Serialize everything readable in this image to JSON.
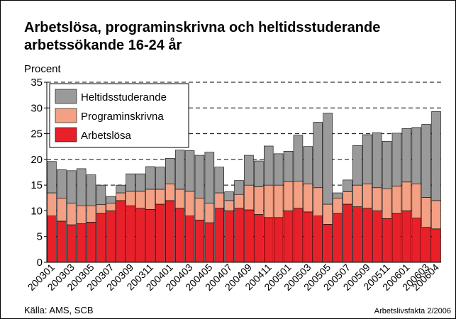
{
  "chart_data": {
    "type": "stacked_bar",
    "title": "Arbetslösa, programinskrivna och heltidsstuderande",
    "subtitle": "arbetssökande 16-24 år",
    "ylabel": "Procent",
    "source": "Källa: AMS, SCB",
    "credit": "Arbetslivsfakta 2/2006",
    "categories": [
      "200301",
      null,
      "200303",
      null,
      "200305",
      null,
      "200307",
      null,
      "200309",
      null,
      "200311",
      null,
      "200401",
      null,
      "200403",
      null,
      "200405",
      null,
      "200407",
      null,
      "200409",
      null,
      "200411",
      null,
      "200501",
      null,
      "200503",
      null,
      "200505",
      null,
      "200507",
      null,
      "200509",
      null,
      "200511",
      null,
      "200601",
      null,
      "200603",
      "200604"
    ],
    "series": [
      {
        "name": "Arbetslösa",
        "color": "#e8202a",
        "values": [
          9,
          8,
          7.3,
          7.5,
          7.8,
          9.5,
          10,
          12,
          11,
          10.5,
          10.3,
          11.3,
          12,
          10.5,
          9,
          8.2,
          7.7,
          10.5,
          10,
          10.5,
          10.2,
          9.3,
          8.7,
          8.7,
          10,
          10.5,
          9.8,
          9,
          7.4,
          9.5,
          11.3,
          10.8,
          10.5,
          10,
          8.5,
          9.5,
          10,
          8.6,
          6.8,
          6.5
        ]
      },
      {
        "name": "Programinskrivna",
        "color": "#f4a084",
        "values": [
          4.5,
          4.5,
          4.2,
          3.5,
          3.2,
          1.7,
          1.5,
          1.5,
          2.8,
          3.3,
          3.9,
          2.9,
          3.2,
          3.7,
          4.8,
          4.3,
          3.8,
          3,
          2,
          2.7,
          4.8,
          5.4,
          6.3,
          6.3,
          5.7,
          5.3,
          5.4,
          5.5,
          3.9,
          3,
          2.4,
          4.2,
          4.7,
          4.5,
          5.8,
          5.3,
          5.6,
          6.6,
          5.8,
          5.5
        ]
      },
      {
        "name": "Heltidsstuderande",
        "color": "#9a9a9a",
        "values": [
          6.1,
          5.5,
          6.3,
          7.2,
          6,
          3.8,
          1.3,
          1.5,
          3.4,
          3.4,
          4.4,
          4.3,
          5,
          7.6,
          7.9,
          8.3,
          9.9,
          5,
          1.7,
          2.7,
          5.8,
          5,
          7.6,
          6.1,
          5.9,
          8.9,
          7.3,
          12.7,
          17.7,
          1,
          2.3,
          7.7,
          9.6,
          10.7,
          9.2,
          10.3,
          10.4,
          11,
          14.2,
          17.3
        ]
      }
    ],
    "ylim": [
      0,
      35
    ],
    "yticks": [
      0,
      5,
      10,
      15,
      20,
      25,
      30,
      35
    ],
    "grid": true,
    "legend": "upper left"
  }
}
